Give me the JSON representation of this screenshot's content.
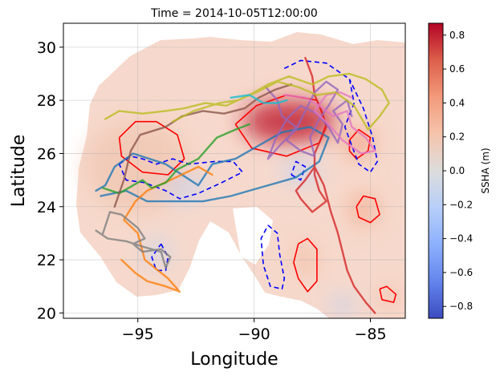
{
  "chart_data": {
    "type": "map",
    "title": "Time = 2014-10-05T12:00:00",
    "xlabel": "Longitude",
    "ylabel": "Latitude",
    "xlim": [
      -98.2,
      -83.5
    ],
    "ylim": [
      19.8,
      30.9
    ],
    "x_ticks": [
      -95,
      -90,
      -85
    ],
    "y_ticks": [
      20,
      22,
      24,
      26,
      28,
      30
    ],
    "grid": true,
    "colorbar": {
      "label": "SSHA (m)",
      "range": [
        -0.87,
        0.87
      ],
      "ticks": [
        -0.8,
        -0.6,
        -0.4,
        -0.2,
        0.0,
        0.2,
        0.4,
        0.6,
        0.8
      ],
      "colormap": "coolwarm",
      "low_color": "#3b4cc0",
      "mid_color": "#dddddd",
      "high_color": "#b40426"
    },
    "ssha_blobs": [
      {
        "lon": -95.0,
        "lat": 25.5,
        "rx": 4.5,
        "ry": 3.5,
        "value": 0.18
      },
      {
        "lon": -88.5,
        "lat": 27.2,
        "rx": 4.0,
        "ry": 1.6,
        "value": 0.8
      },
      {
        "lon": -85.5,
        "lat": 26.4,
        "rx": 1.2,
        "ry": 1.0,
        "value": 0.45
      },
      {
        "lon": -85.3,
        "lat": 23.9,
        "rx": 1.2,
        "ry": 1.2,
        "value": 0.35
      },
      {
        "lon": -87.8,
        "lat": 22.0,
        "rx": 0.8,
        "ry": 1.2,
        "value": 0.3
      },
      {
        "lon": -84.2,
        "lat": 20.6,
        "rx": 0.8,
        "ry": 0.6,
        "value": 0.35
      },
      {
        "lon": -88.0,
        "lat": 25.3,
        "rx": 1.6,
        "ry": 0.7,
        "value": -0.2
      },
      {
        "lon": -93.0,
        "lat": 24.7,
        "rx": 1.8,
        "ry": 0.9,
        "value": -0.12
      },
      {
        "lon": -94.2,
        "lat": 22.3,
        "rx": 1.2,
        "ry": 1.0,
        "value": -0.1
      },
      {
        "lon": -86.2,
        "lat": 20.3,
        "rx": 1.0,
        "ry": 0.6,
        "value": -0.22
      }
    ],
    "contours_positive": [
      [
        [
          -95.8,
          26.6
        ],
        [
          -95.1,
          27.2
        ],
        [
          -94.2,
          27.2
        ],
        [
          -93.3,
          26.7
        ],
        [
          -93.0,
          25.8
        ],
        [
          -93.7,
          25.2
        ],
        [
          -94.8,
          25.3
        ],
        [
          -95.7,
          25.9
        ],
        [
          -95.8,
          26.6
        ]
      ],
      [
        [
          -90.8,
          27.1
        ],
        [
          -89.9,
          27.8
        ],
        [
          -88.6,
          28.2
        ],
        [
          -87.3,
          28.0
        ],
        [
          -86.9,
          27.1
        ],
        [
          -87.2,
          26.4
        ],
        [
          -88.6,
          25.9
        ],
        [
          -90.1,
          26.2
        ],
        [
          -90.8,
          27.1
        ]
      ],
      [
        [
          -85.9,
          26.5
        ],
        [
          -85.5,
          26.9
        ],
        [
          -85.0,
          26.6
        ],
        [
          -85.1,
          26.1
        ],
        [
          -85.6,
          25.8
        ],
        [
          -85.9,
          26.1
        ],
        [
          -85.9,
          26.5
        ]
      ],
      [
        [
          -85.6,
          24.0
        ],
        [
          -85.3,
          24.4
        ],
        [
          -84.8,
          24.3
        ],
        [
          -84.6,
          23.7
        ],
        [
          -85.0,
          23.4
        ],
        [
          -85.5,
          23.6
        ],
        [
          -85.6,
          24.0
        ]
      ],
      [
        [
          -88.1,
          22.6
        ],
        [
          -87.7,
          22.8
        ],
        [
          -87.3,
          22.4
        ],
        [
          -87.3,
          21.2
        ],
        [
          -87.7,
          20.8
        ],
        [
          -88.1,
          21.3
        ],
        [
          -88.3,
          21.9
        ],
        [
          -88.1,
          22.6
        ]
      ],
      [
        [
          -84.6,
          20.9
        ],
        [
          -84.3,
          21.0
        ],
        [
          -83.9,
          20.7
        ],
        [
          -84.0,
          20.4
        ],
        [
          -84.5,
          20.5
        ],
        [
          -84.6,
          20.9
        ]
      ]
    ],
    "contours_negative": [
      [
        [
          -88.7,
          29.2
        ],
        [
          -88.0,
          29.5
        ],
        [
          -86.9,
          29.4
        ],
        [
          -85.9,
          28.8
        ],
        [
          -85.7,
          27.9
        ],
        [
          -86.1,
          27.0
        ],
        [
          -85.8,
          26.3
        ],
        [
          -85.5,
          25.6
        ],
        [
          -85.0,
          25.3
        ],
        [
          -84.7,
          25.7
        ],
        [
          -84.9,
          26.6
        ],
        [
          -85.3,
          27.7
        ],
        [
          -85.9,
          28.8
        ]
      ],
      [
        [
          -95.8,
          25.6
        ],
        [
          -95.3,
          25.9
        ],
        [
          -94.8,
          25.8
        ],
        [
          -94.2,
          25.6
        ],
        [
          -93.5,
          25.8
        ],
        [
          -92.8,
          25.6
        ],
        [
          -91.7,
          25.7
        ],
        [
          -90.9,
          25.7
        ],
        [
          -90.5,
          25.3
        ],
        [
          -91.4,
          24.9
        ],
        [
          -92.4,
          24.5
        ],
        [
          -93.2,
          24.3
        ],
        [
          -93.8,
          24.6
        ],
        [
          -94.7,
          24.9
        ],
        [
          -95.5,
          25.0
        ],
        [
          -95.8,
          25.6
        ]
      ],
      [
        [
          -88.4,
          25.2
        ],
        [
          -88.0,
          25.0
        ],
        [
          -87.8,
          25.5
        ],
        [
          -88.2,
          25.7
        ],
        [
          -88.4,
          25.2
        ]
      ],
      [
        [
          -89.4,
          23.3
        ],
        [
          -89.0,
          23.0
        ],
        [
          -88.9,
          22.2
        ],
        [
          -88.7,
          21.3
        ],
        [
          -88.8,
          20.9
        ],
        [
          -89.3,
          21.0
        ],
        [
          -89.6,
          21.8
        ],
        [
          -89.7,
          22.8
        ],
        [
          -89.4,
          23.3
        ]
      ],
      [
        [
          -94.0,
          22.6
        ],
        [
          -93.7,
          22.1
        ],
        [
          -93.8,
          21.6
        ],
        [
          -94.2,
          21.6
        ],
        [
          -94.4,
          22.1
        ],
        [
          -94.0,
          22.6
        ]
      ]
    ],
    "drifter_tracks": [
      {
        "color": "#1f77b4",
        "points": [
          [
            -96.6,
            24.4
          ],
          [
            -95.5,
            24.6
          ],
          [
            -94.6,
            24.2
          ],
          [
            -93.5,
            24.2
          ],
          [
            -92.2,
            24.2
          ],
          [
            -91.0,
            24.4
          ],
          [
            -89.8,
            24.7
          ],
          [
            -88.2,
            25.1
          ],
          [
            -87.2,
            25.7
          ],
          [
            -86.8,
            26.6
          ],
          [
            -87.6,
            27.0
          ],
          [
            -88.8,
            26.8
          ],
          [
            -89.8,
            26.3
          ],
          [
            -90.8,
            25.8
          ],
          [
            -91.8,
            25.6
          ],
          [
            -92.4,
            24.8
          ],
          [
            -93.8,
            25.6
          ],
          [
            -95.2,
            26.0
          ],
          [
            -96.0,
            25.5
          ],
          [
            -96.4,
            24.8
          ],
          [
            -96.8,
            24.6
          ]
        ]
      },
      {
        "color": "#ff7f0e",
        "points": [
          [
            -95.7,
            22.0
          ],
          [
            -95.1,
            21.5
          ],
          [
            -94.6,
            21.2
          ],
          [
            -93.8,
            21.0
          ],
          [
            -93.2,
            20.8
          ],
          [
            -93.7,
            21.3
          ],
          [
            -94.7,
            22.0
          ],
          [
            -95.0,
            23.0
          ],
          [
            -95.6,
            23.5
          ],
          [
            -95.1,
            24.2
          ],
          [
            -94.6,
            24.6
          ],
          [
            -93.6,
            25.0
          ],
          [
            -92.4,
            25.5
          ],
          [
            -91.8,
            25.2
          ]
        ]
      },
      {
        "color": "#2ca02c",
        "points": [
          [
            -96.5,
            24.7
          ],
          [
            -95.8,
            24.5
          ],
          [
            -95.2,
            24.8
          ],
          [
            -94.8,
            25.0
          ],
          [
            -94.4,
            24.7
          ],
          [
            -93.8,
            24.9
          ],
          [
            -93.3,
            25.4
          ],
          [
            -92.4,
            25.8
          ],
          [
            -92.0,
            26.2
          ],
          [
            -91.6,
            26.6
          ],
          [
            -90.8,
            26.9
          ],
          [
            -90.2,
            27.1
          ]
        ]
      },
      {
        "color": "#d62728",
        "points": [
          [
            -87.8,
            29.6
          ],
          [
            -87.5,
            28.9
          ],
          [
            -87.4,
            28.2
          ],
          [
            -87.1,
            27.6
          ],
          [
            -86.9,
            27.0
          ],
          [
            -87.4,
            26.0
          ],
          [
            -87.4,
            25.2
          ],
          [
            -87.2,
            24.6
          ],
          [
            -86.9,
            24.2
          ],
          [
            -87.5,
            23.8
          ],
          [
            -88.0,
            24.3
          ],
          [
            -88.2,
            24.6
          ],
          [
            -87.8,
            25.0
          ],
          [
            -87.4,
            25.5
          ],
          [
            -87.0,
            24.8
          ],
          [
            -86.7,
            23.8
          ],
          [
            -86.4,
            23.0
          ],
          [
            -86.2,
            22.3
          ],
          [
            -86.0,
            21.6
          ],
          [
            -85.7,
            21.0
          ],
          [
            -85.2,
            20.4
          ],
          [
            -84.8,
            20.0
          ]
        ]
      },
      {
        "color": "#9467bd",
        "points": [
          [
            -89.5,
            28.5
          ],
          [
            -89.0,
            28.0
          ],
          [
            -88.8,
            27.4
          ],
          [
            -88.2,
            27.0
          ],
          [
            -88.6,
            26.5
          ],
          [
            -88.0,
            26.1
          ],
          [
            -87.4,
            25.9
          ],
          [
            -87.6,
            26.6
          ],
          [
            -87.2,
            27.3
          ],
          [
            -86.8,
            27.8
          ],
          [
            -86.4,
            28.4
          ],
          [
            -86.9,
            28.7
          ],
          [
            -87.4,
            28.3
          ],
          [
            -87.8,
            27.6
          ],
          [
            -88.2,
            26.9
          ],
          [
            -88.9,
            26.3
          ],
          [
            -89.4,
            25.8
          ],
          [
            -89.1,
            26.5
          ],
          [
            -88.6,
            27.3
          ],
          [
            -88.0,
            27.8
          ],
          [
            -87.3,
            27.5
          ],
          [
            -86.8,
            27.0
          ],
          [
            -86.4,
            26.4
          ],
          [
            -86.2,
            27.1
          ],
          [
            -86.6,
            27.6
          ],
          [
            -86.0,
            28.0
          ],
          [
            -85.8,
            27.4
          ]
        ]
      },
      {
        "color": "#8c564b",
        "points": [
          [
            -96.0,
            24.0
          ],
          [
            -95.6,
            25.0
          ],
          [
            -95.3,
            26.1
          ],
          [
            -94.9,
            26.7
          ],
          [
            -93.8,
            27.0
          ],
          [
            -93.1,
            27.4
          ],
          [
            -92.2,
            27.6
          ],
          [
            -91.3,
            27.5
          ],
          [
            -90.4,
            27.7
          ],
          [
            -89.8,
            28.1
          ],
          [
            -89.1,
            28.4
          ],
          [
            -88.4,
            28.6
          ]
        ]
      },
      {
        "color": "#e377c2",
        "points": [
          [
            -88.7,
            28.2
          ],
          [
            -87.8,
            28.1
          ],
          [
            -87.2,
            27.8
          ],
          [
            -86.6,
            27.4
          ],
          [
            -86.0,
            27.6
          ],
          [
            -85.8,
            27.0
          ],
          [
            -85.2,
            26.6
          ],
          [
            -84.8,
            26.1
          ],
          [
            -85.4,
            26.0
          ],
          [
            -86.2,
            26.5
          ],
          [
            -86.8,
            27.1
          ],
          [
            -87.4,
            27.6
          ],
          [
            -86.9,
            28.2
          ],
          [
            -86.3,
            28.3
          ],
          [
            -85.8,
            28.1
          ]
        ]
      },
      {
        "color": "#7f7f7f",
        "points": [
          [
            -96.5,
            23.0
          ],
          [
            -96.2,
            23.8
          ],
          [
            -95.7,
            23.7
          ],
          [
            -95.0,
            23.2
          ],
          [
            -94.7,
            22.8
          ],
          [
            -95.2,
            22.6
          ],
          [
            -94.8,
            22.3
          ],
          [
            -94.0,
            22.4
          ],
          [
            -93.6,
            22.1
          ],
          [
            -93.8,
            21.7
          ],
          [
            -94.0,
            22.3
          ],
          [
            -94.8,
            22.5
          ],
          [
            -95.5,
            22.7
          ],
          [
            -96.3,
            22.8
          ],
          [
            -96.8,
            23.1
          ]
        ]
      },
      {
        "color": "#bcbd22",
        "points": [
          [
            -96.4,
            27.3
          ],
          [
            -95.8,
            27.6
          ],
          [
            -94.8,
            27.5
          ],
          [
            -93.8,
            27.6
          ],
          [
            -93.0,
            27.7
          ],
          [
            -92.1,
            27.9
          ],
          [
            -91.2,
            27.8
          ],
          [
            -90.2,
            28.2
          ],
          [
            -89.4,
            28.6
          ],
          [
            -88.5,
            28.9
          ],
          [
            -87.5,
            28.6
          ],
          [
            -86.8,
            28.9
          ],
          [
            -85.9,
            29.0
          ],
          [
            -85.2,
            28.8
          ],
          [
            -84.5,
            28.4
          ],
          [
            -84.2,
            27.9
          ],
          [
            -84.6,
            27.4
          ],
          [
            -85.1,
            26.9
          ],
          [
            -85.7,
            27.8
          ],
          [
            -86.5,
            28.3
          ],
          [
            -87.3,
            28.2
          ],
          [
            -88.1,
            28.5
          ],
          [
            -89.0,
            28.7
          ],
          [
            -89.9,
            28.3
          ],
          [
            -90.7,
            28.0
          ],
          [
            -91.5,
            27.9
          ],
          [
            -92.6,
            27.6
          ],
          [
            -93.5,
            27.2
          ]
        ]
      },
      {
        "color": "#17becf",
        "points": [
          [
            -91.0,
            28.1
          ],
          [
            -90.2,
            28.2
          ],
          [
            -89.6,
            27.9
          ],
          [
            -89.0,
            27.9
          ],
          [
            -88.6,
            28.0
          ]
        ]
      }
    ]
  }
}
